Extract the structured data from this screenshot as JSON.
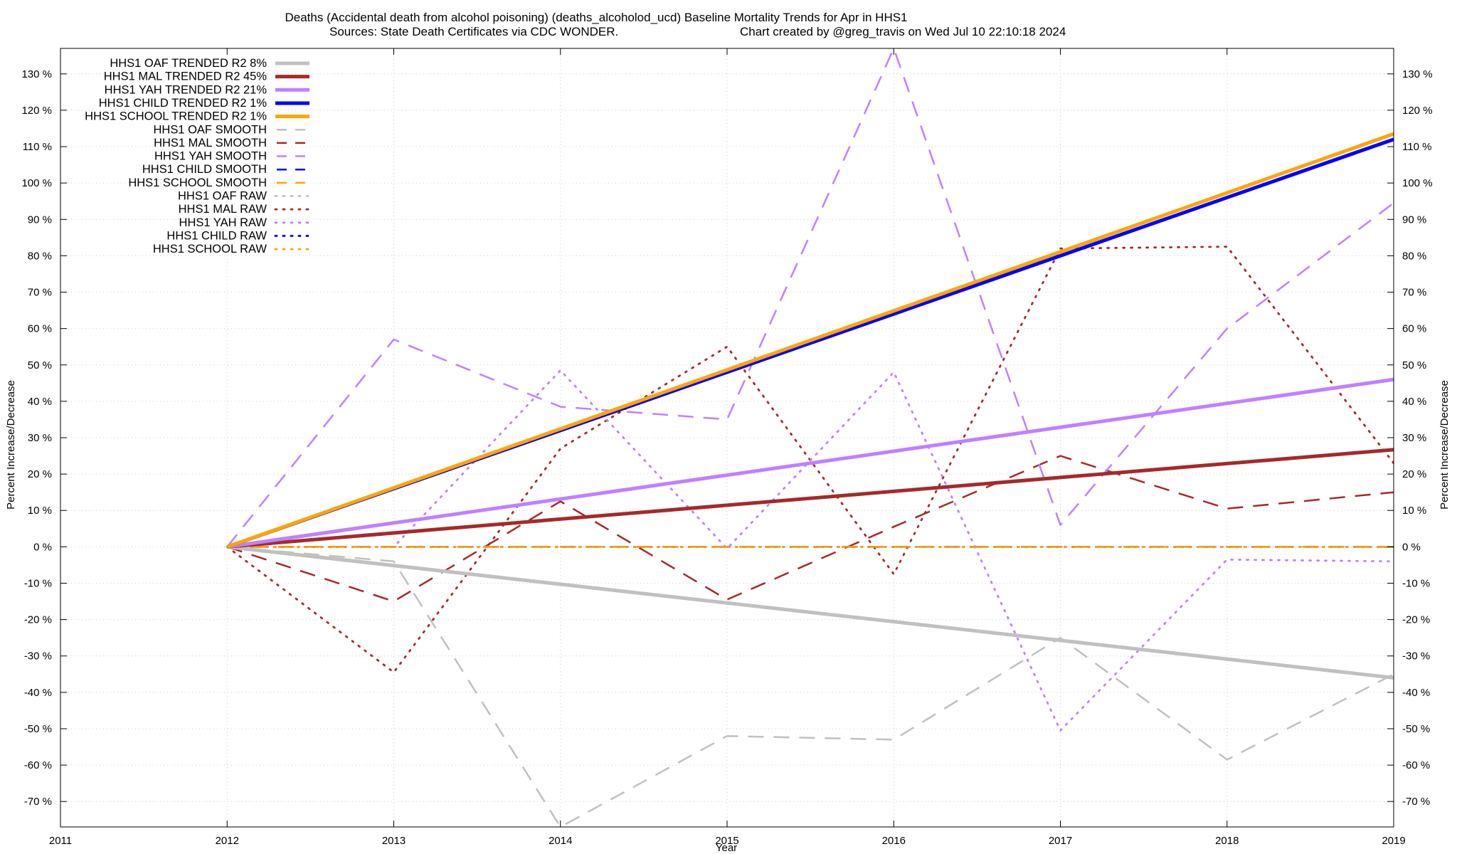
{
  "chart_data": {
    "type": "line",
    "title_line1": "Deaths (Accidental death from alcohol poisoning) (deaths_alcoholod_ucd)  Baseline Mortality Trends for Apr in HHS1",
    "title_line2_left": "Sources: State Death Certificates via CDC WONDER.",
    "title_line2_right": "Chart created by @greg_travis on Wed Jul 10 22:10:18 2024",
    "xlabel": "Year",
    "ylabel": "Percent Increase/Decrease",
    "xlim": [
      2011,
      2019
    ],
    "ylim": [
      -77,
      137
    ],
    "x_ticks": [
      2011,
      2012,
      2013,
      2014,
      2015,
      2016,
      2017,
      2018,
      2019
    ],
    "x_tick_labels": [
      "2011",
      "2012",
      "2013",
      "2014",
      "2015",
      "2016",
      "2017",
      "2018",
      "2019"
    ],
    "y_ticks": [
      -70,
      -60,
      -50,
      -40,
      -30,
      -20,
      -10,
      0,
      10,
      20,
      30,
      40,
      50,
      60,
      70,
      80,
      90,
      100,
      110,
      120,
      130
    ],
    "y_tick_labels": [
      "-70 %",
      "-60 %",
      "-50 %",
      "-40 %",
      "-30 %",
      "-20 %",
      "-10 %",
      "0 %",
      "10 %",
      "20 %",
      "30 %",
      "40 %",
      "50 %",
      "60 %",
      "70 %",
      "80 %",
      "90 %",
      "100 %",
      "110 %",
      "120 %",
      "130 %"
    ],
    "grid": true,
    "legend_position": "top-left",
    "series": [
      {
        "name": "HHS1 OAF TRENDED R2  8%",
        "style": "solid",
        "color": "#c0c0c0",
        "x": [
          2012,
          2019
        ],
        "values": [
          0,
          -36
        ]
      },
      {
        "name": "HHS1 MAL TRENDED R2  45%",
        "style": "solid",
        "color": "#a52a2a",
        "x": [
          2012,
          2019
        ],
        "values": [
          0,
          26.7
        ]
      },
      {
        "name": "HHS1 YAH TRENDED R2  21%",
        "style": "solid",
        "color": "#c080ff",
        "x": [
          2012,
          2019
        ],
        "values": [
          0,
          46
        ]
      },
      {
        "name": "HHS1 CHILD TRENDED R2  1%",
        "style": "solid",
        "color": "#0000ff",
        "x": [
          2012,
          2019
        ],
        "values": [
          0,
          112
        ]
      },
      {
        "name": "HHS1 SCHOOL TRENDED R2  1%",
        "style": "solid",
        "color": "#ffa500",
        "x": [
          2012,
          2019
        ],
        "values": [
          0,
          113.5
        ]
      },
      {
        "name": "HHS1 OAF SMOOTH",
        "style": "dashed",
        "color": "#c0c0c0",
        "x": [
          2012,
          2013,
          2014,
          2015,
          2016,
          2017,
          2018,
          2019
        ],
        "values": [
          0,
          -4,
          -77,
          -52,
          -53,
          -25,
          -58.5,
          -35
        ]
      },
      {
        "name": "HHS1 MAL SMOOTH",
        "style": "dashed",
        "color": "#a52a2a",
        "x": [
          2012,
          2013,
          2014,
          2015,
          2016,
          2017,
          2018,
          2019
        ],
        "values": [
          0,
          -15,
          12.5,
          -14.5,
          5.5,
          25,
          10.5,
          15
        ]
      },
      {
        "name": "HHS1 YAH SMOOTH",
        "style": "dashed",
        "color": "#c080ff",
        "x": [
          2012,
          2013,
          2014,
          2015,
          2016,
          2017,
          2018,
          2019
        ],
        "values": [
          0,
          57,
          38.5,
          35,
          137,
          6,
          60,
          94.5
        ]
      },
      {
        "name": "HHS1 CHILD SMOOTH",
        "style": "dashed",
        "color": "#0000ff",
        "x": [
          2012,
          2019
        ],
        "values": [
          0,
          0
        ]
      },
      {
        "name": "HHS1 SCHOOL SMOOTH",
        "style": "dashed",
        "color": "#ffa500",
        "x": [
          2012,
          2019
        ],
        "values": [
          0,
          0
        ]
      },
      {
        "name": "HHS1 OAF RAW",
        "style": "dotted",
        "color": "#c0c0c0",
        "x": [
          2012,
          2019
        ],
        "values": [
          0,
          0
        ]
      },
      {
        "name": "HHS1 MAL RAW",
        "style": "dotted",
        "color": "#a52a2a",
        "x": [
          2012,
          2013,
          2014,
          2015,
          2016,
          2017,
          2018,
          2019
        ],
        "values": [
          0,
          -34.5,
          27,
          55,
          -7.5,
          82,
          82.5,
          23
        ]
      },
      {
        "name": "HHS1 YAH RAW",
        "style": "dotted",
        "color": "#c080ff",
        "x": [
          2012,
          2013,
          2014,
          2015,
          2016,
          2017,
          2018,
          2019
        ],
        "values": [
          0,
          0,
          48.5,
          -0.5,
          48,
          -50.5,
          -3.5,
          -4
        ]
      },
      {
        "name": "HHS1 CHILD RAW",
        "style": "dotted",
        "color": "#0000ff",
        "x": [
          2012,
          2019
        ],
        "values": [
          0,
          0
        ]
      },
      {
        "name": "HHS1 SCHOOL RAW",
        "style": "dotted",
        "color": "#ffa500",
        "x": [
          2012,
          2019
        ],
        "values": [
          0,
          0
        ]
      }
    ]
  }
}
